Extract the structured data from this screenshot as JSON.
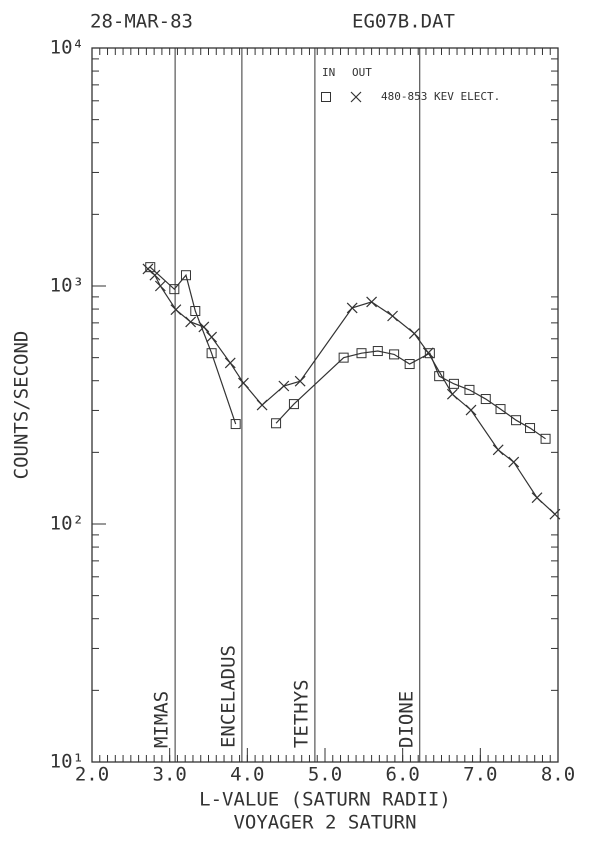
{
  "chart_data": {
    "type": "line",
    "title": "28-MAR-83",
    "file_label": "EG07B.DAT",
    "x_label": "L-VALUE (SATURN RADII)",
    "subtitle": "VOYAGER 2 SATURN",
    "y_label": "COUNTS/SECOND",
    "legend_label": "480-853 KEV ELECT.",
    "log_y": true,
    "xlim": [
      2,
      8
    ],
    "ylim": [
      10,
      10000
    ],
    "xticks": [
      {
        "value": 2,
        "label": "2.0"
      },
      {
        "value": 3,
        "label": "3.0"
      },
      {
        "value": 4,
        "label": "4.0"
      },
      {
        "value": 5,
        "label": "5.0"
      },
      {
        "value": 6,
        "label": "6.0"
      },
      {
        "value": 7,
        "label": "7.0"
      },
      {
        "value": 8,
        "label": "8.0"
      }
    ],
    "yticks": [
      {
        "value": 10,
        "label": "10¹"
      },
      {
        "value": 100,
        "label": "10²"
      },
      {
        "value": 1000,
        "label": "10³"
      },
      {
        "value": 10000,
        "label": "10⁴"
      }
    ],
    "annotations": [
      {
        "label": "MIMAS",
        "x": 3.07
      },
      {
        "label": "ENCELADUS",
        "x": 3.93
      },
      {
        "label": "TETHYS",
        "x": 4.87
      },
      {
        "label": "DIONE",
        "x": 6.22
      }
    ],
    "series": [
      {
        "name": "IN",
        "marker": "square",
        "color": "#333333",
        "x": [
          2.75,
          3.06,
          3.21,
          3.33,
          3.54,
          3.85,
          null,
          4.37,
          4.6,
          5.24,
          5.47,
          5.68,
          5.89,
          6.09,
          6.35,
          6.47,
          6.66,
          6.86,
          7.07,
          7.26,
          7.46,
          7.64,
          7.84
        ],
        "values": [
          1200,
          970,
          1110,
          785,
          522,
          263,
          null,
          265,
          319,
          500,
          522,
          533,
          516,
          470,
          522,
          418,
          388,
          366,
          335,
          304,
          273,
          253,
          228
        ]
      },
      {
        "name": "OUT",
        "marker": "cross",
        "color": "#333333",
        "x": [
          2.72,
          2.81,
          2.88,
          3.08,
          3.27,
          3.44,
          3.54,
          3.78,
          3.95,
          4.19,
          4.47,
          4.68,
          5.35,
          5.6,
          5.87,
          6.15,
          6.33,
          6.64,
          6.88,
          7.23,
          7.43,
          7.73,
          7.96
        ],
        "values": [
          1180,
          1110,
          1000,
          795,
          706,
          673,
          610,
          475,
          391,
          316,
          380,
          398,
          809,
          857,
          748,
          631,
          524,
          351,
          301,
          205,
          182,
          129,
          110
        ]
      }
    ]
  }
}
